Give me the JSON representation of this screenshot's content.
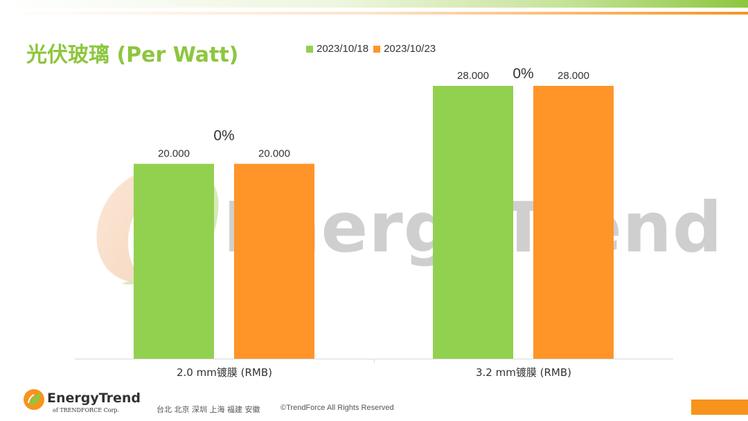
{
  "title": "光伏玻璃 (Per Watt)",
  "legend": [
    {
      "label": "2023/10/18",
      "color": "#92d050"
    },
    {
      "label": "2023/10/23",
      "color": "#ff9429"
    }
  ],
  "chart_data": {
    "type": "bar",
    "categories": [
      "2.0 mm镀膜 (RMB)",
      "3.2 mm镀膜 (RMB)"
    ],
    "series": [
      {
        "name": "2023/10/18",
        "values": [
          20.0,
          28.0
        ],
        "labels": [
          "20.000",
          "28.000"
        ],
        "color": "#92d050"
      },
      {
        "name": "2023/10/23",
        "values": [
          20.0,
          28.0
        ],
        "labels": [
          "20.000",
          "28.000"
        ],
        "color": "#ff9429"
      }
    ],
    "change_labels": [
      "0%",
      "0%"
    ],
    "ylim": [
      0,
      30
    ],
    "title": "光伏玻璃 (Per Watt)",
    "xlabel": "",
    "ylabel": "",
    "grid": false,
    "legend_position": "top"
  },
  "watermark": {
    "text": "EnergyTrend"
  },
  "footer": {
    "logo_text": "EnergyTrend",
    "logo_sub": "of TRENDFORCE Corp.",
    "cities": "台北 北京 深圳 上海 福建 安徽",
    "copyright": "©TrendForce All Rights Reserved"
  },
  "colors": {
    "accent_green": "#8dc63f",
    "accent_orange": "#f7941d"
  }
}
